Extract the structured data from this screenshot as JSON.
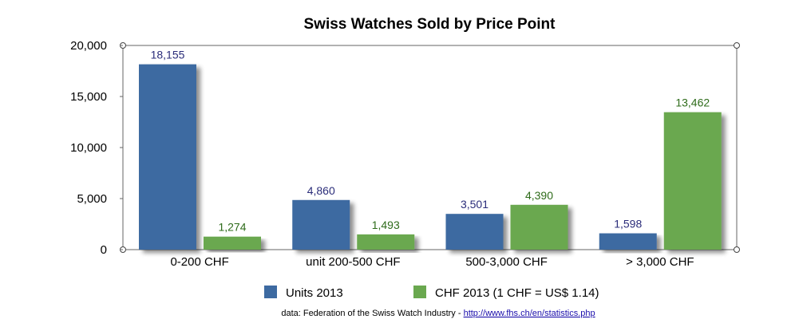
{
  "chart_data": {
    "type": "bar",
    "title": "Swiss Watches Sold by Price Point",
    "categories": [
      "0-200 CHF",
      "unit 200-500 CHF",
      "500-3,000 CHF",
      "> 3,000 CHF"
    ],
    "series": [
      {
        "name": "Units 2013",
        "values": [
          18155,
          4860,
          3501,
          1598
        ],
        "labels": [
          "18,155",
          "4,860",
          "3,501",
          "1,598"
        ],
        "color": "#3d6aa1",
        "label_color": "#2b2d7a"
      },
      {
        "name": "CHF 2013 (1 CHF = US$ 1.14)",
        "values": [
          1274,
          1493,
          4390,
          13462
        ],
        "labels": [
          "1,274",
          "1,493",
          "4,390",
          "13,462"
        ],
        "color": "#6aa84f",
        "label_color": "#2e6b1a"
      }
    ],
    "ylim": [
      0,
      20000
    ],
    "yticks": [
      0,
      5000,
      10000,
      15000,
      20000
    ],
    "ytick_labels": [
      "0",
      "5,000",
      "10,000",
      "15,000",
      "20,000"
    ],
    "xlabel": "",
    "ylabel": "",
    "grid": false,
    "legend_position": "bottom"
  },
  "source": {
    "text": "data: Federation of the Swiss Watch Industry - ",
    "link": "http://www.fhs.ch/en/statistics.php"
  }
}
